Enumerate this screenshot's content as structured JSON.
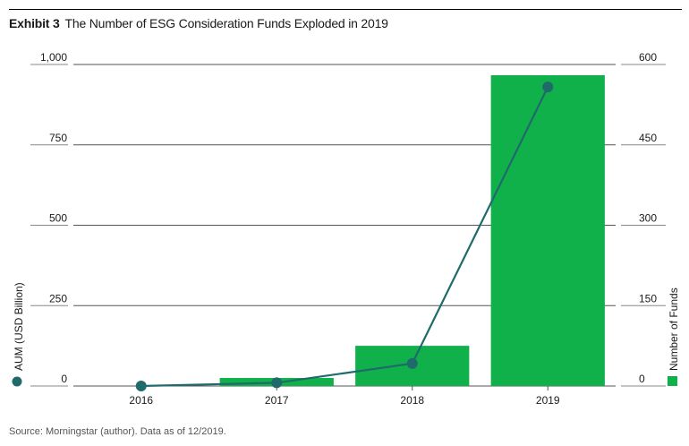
{
  "header": {
    "exhibit": "Exhibit 3",
    "title": "The Number of ESG Consideration Funds Exploded in 2019"
  },
  "footer": {
    "source": "Source: Morningstar (author). Data as of 12/2019."
  },
  "chart_data": {
    "type": "bar",
    "title": "The Number of ESG Consideration Funds Exploded in 2019",
    "categories": [
      "2016",
      "2017",
      "2018",
      "2019"
    ],
    "left_axis": {
      "label": "AUM (USD Billion)",
      "ticks": [
        "0",
        "250",
        "500",
        "750",
        "1,000"
      ],
      "ylim": [
        0,
        1000
      ]
    },
    "right_axis": {
      "label": "Number of Funds",
      "ticks": [
        "0",
        "150",
        "300",
        "450",
        "600"
      ],
      "ylim": [
        0,
        600
      ]
    },
    "series": [
      {
        "name": "AUM (USD Billion)",
        "type": "line",
        "axis": "left",
        "values": [
          0,
          10,
          70,
          930
        ],
        "color": "#1f6b6b"
      },
      {
        "name": "Number of Funds",
        "type": "bar",
        "axis": "right",
        "values": [
          0,
          15,
          75,
          580
        ],
        "color": "#10b04a"
      }
    ],
    "grid": true,
    "legend": "axis-titles"
  }
}
